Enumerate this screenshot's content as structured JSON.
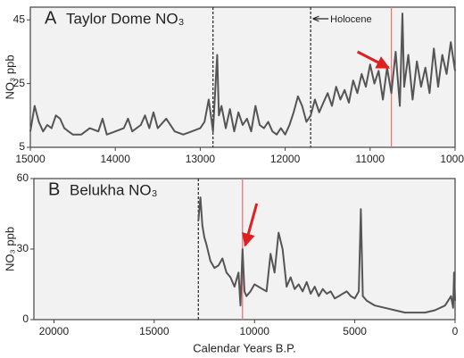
{
  "chart_data": [
    {
      "type": "line",
      "panel_label": "A",
      "title": "Taylor Dome NO₃",
      "ylabel": "NO₃ ppb",
      "annotation": "Holocene",
      "xlim": [
        15000,
        10000
      ],
      "xticks": [
        15000,
        14000,
        13000,
        12000,
        11000,
        10000
      ],
      "ylim": [
        5,
        49
      ],
      "yticks": [
        5,
        25,
        45
      ],
      "dashed_lines": [
        12850,
        11700
      ],
      "red_lines": [
        10750
      ],
      "red_line_color": "#e87878",
      "series": [
        {
          "color": "#555555",
          "x": [
            15000,
            14950,
            14900,
            14850,
            14800,
            14750,
            14700,
            14650,
            14600,
            14550,
            14500,
            14400,
            14300,
            14200,
            14150,
            14100,
            14000,
            13900,
            13850,
            13800,
            13700,
            13650,
            13600,
            13550,
            13500,
            13400,
            13300,
            13200,
            13100,
            13000,
            12950,
            12900,
            12870,
            12850,
            12800,
            12780,
            12750,
            12700,
            12650,
            12600,
            12550,
            12500,
            12450,
            12400,
            12350,
            12300,
            12250,
            12200,
            12150,
            12100,
            12050,
            12000,
            11950,
            11900,
            11850,
            11800,
            11750,
            11700,
            11650,
            11600,
            11550,
            11500,
            11450,
            11400,
            11350,
            11300,
            11250,
            11200,
            11150,
            11100,
            11050,
            11000,
            10950,
            10900,
            10850,
            10800,
            10750,
            10700,
            10650,
            10620,
            10600,
            10550,
            10500,
            10450,
            10400,
            10350,
            10300,
            10250,
            10200,
            10150,
            10100,
            10050,
            10000
          ],
          "values": [
            10,
            18,
            13,
            10,
            12,
            11,
            15,
            14,
            11,
            10,
            9,
            9,
            11,
            10,
            14,
            9,
            10,
            11,
            14,
            10,
            12,
            15,
            11,
            16,
            11,
            14,
            10,
            9,
            10,
            11,
            13,
            20,
            14,
            10,
            34,
            15,
            18,
            11,
            17,
            10,
            16,
            12,
            14,
            10,
            18,
            12,
            11,
            13,
            10,
            9,
            11,
            9,
            12,
            16,
            21,
            18,
            13,
            15,
            20,
            16,
            19,
            22,
            18,
            24,
            20,
            23,
            19,
            26,
            22,
            28,
            24,
            31,
            25,
            29,
            20,
            30,
            22,
            35,
            18,
            47,
            24,
            34,
            20,
            32,
            24,
            30,
            22,
            36,
            24,
            34,
            28,
            38,
            29
          ]
        }
      ]
    },
    {
      "type": "line",
      "panel_label": "B",
      "title": "Belukha NO₃",
      "ylabel": "NO₃ ppb",
      "xlabel": "Calendar Years B.P.",
      "xlim": [
        21000,
        0
      ],
      "xticks": [
        20000,
        15000,
        10000,
        5000,
        0
      ],
      "ylim": [
        0,
        60
      ],
      "yticks": [
        0,
        30,
        60
      ],
      "dashed_lines": [
        12800
      ],
      "red_lines": [
        10600
      ],
      "red_line_color": "#e87878",
      "series": [
        {
          "color": "#555555",
          "x": [
            12800,
            12700,
            12600,
            12500,
            12400,
            12200,
            12000,
            11800,
            11600,
            11400,
            11200,
            11000,
            10800,
            10700,
            10600,
            10500,
            10400,
            10200,
            10000,
            9800,
            9600,
            9400,
            9200,
            9000,
            8800,
            8600,
            8400,
            8200,
            8000,
            7800,
            7600,
            7400,
            7200,
            7000,
            6800,
            6600,
            6400,
            6200,
            6000,
            5800,
            5600,
            5400,
            5200,
            5000,
            4800,
            4700,
            4600,
            4400,
            4200,
            4000,
            3500,
            3000,
            2500,
            2000,
            1500,
            1000,
            500,
            200,
            100,
            50,
            0
          ],
          "values": [
            42,
            52,
            40,
            35,
            32,
            25,
            22,
            23,
            26,
            20,
            18,
            14,
            20,
            6,
            30,
            12,
            10,
            12,
            15,
            14,
            13,
            12,
            28,
            20,
            37,
            30,
            14,
            18,
            13,
            15,
            12,
            16,
            11,
            14,
            10,
            13,
            11,
            12,
            9,
            10,
            11,
            12,
            10,
            9,
            12,
            47,
            10,
            8,
            7,
            6,
            5,
            4,
            3,
            3,
            3,
            4,
            6,
            10,
            5,
            20,
            8
          ]
        }
      ]
    }
  ]
}
